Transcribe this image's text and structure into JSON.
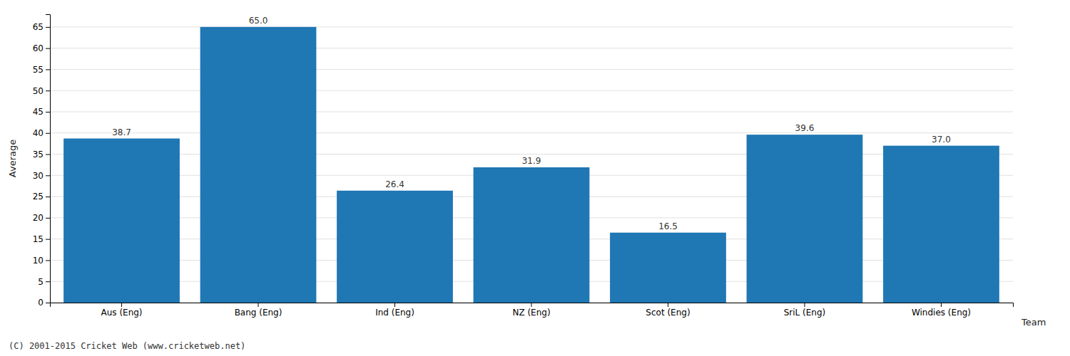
{
  "chart_data": {
    "type": "bar",
    "categories": [
      "Aus (Eng)",
      "Bang (Eng)",
      "Ind (Eng)",
      "NZ (Eng)",
      "Scot (Eng)",
      "SriL (Eng)",
      "Windies (Eng)"
    ],
    "values": [
      38.7,
      65.0,
      26.4,
      31.9,
      16.5,
      39.6,
      37.0
    ],
    "value_labels": [
      "38.7",
      "65.0",
      "26.4",
      "31.9",
      "16.5",
      "39.6",
      "37.0"
    ],
    "data_labels": true,
    "ylabel": "Average",
    "xlabel": "Team",
    "ylim": [
      0,
      68
    ],
    "yticks": [
      0,
      5,
      10,
      15,
      20,
      25,
      30,
      35,
      40,
      45,
      50,
      55,
      60,
      65
    ],
    "grid": true,
    "annotations": [
      "(C) 2001-2015 Cricket Web (www.cricketweb.net)"
    ]
  }
}
